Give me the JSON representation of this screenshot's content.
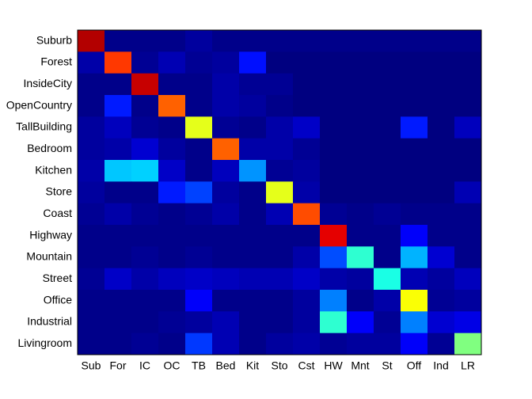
{
  "chart_data": {
    "type": "heatmap",
    "colormap": "jet",
    "clim": [
      0,
      1
    ],
    "categories": [
      "Sub",
      "For",
      "IC",
      "OC",
      "TB",
      "Bed",
      "Kit",
      "Sto",
      "Cst",
      "HW",
      "Mnt",
      "St",
      "Off",
      "Ind",
      "LR"
    ],
    "rows": [
      "Suburb",
      "Forest",
      "InsideCity",
      "OpenCountry",
      "TallBuilding",
      "Bedroom",
      "Kitchen",
      "Store",
      "Coast",
      "Highway",
      "Mountain",
      "Street",
      "Office",
      "Industrial",
      "Livingroom"
    ],
    "values": [
      [
        0.95,
        0.01,
        0.01,
        0.01,
        0.03,
        0.01,
        0.01,
        0.01,
        0.01,
        0.01,
        0.01,
        0.01,
        0.01,
        0.01,
        0.01
      ],
      [
        0.04,
        0.82,
        0.02,
        0.05,
        0.02,
        0.03,
        0.14,
        0,
        0,
        0,
        0,
        0,
        0,
        0,
        0
      ],
      [
        0.01,
        0.01,
        0.93,
        0.01,
        0.01,
        0.04,
        0.02,
        0.02,
        0,
        0,
        0,
        0,
        0,
        0,
        0
      ],
      [
        0.01,
        0.15,
        0.01,
        0.78,
        0.01,
        0.04,
        0.03,
        0.01,
        0,
        0,
        0,
        0,
        0,
        0,
        0
      ],
      [
        0.03,
        0.06,
        0.02,
        0.01,
        0.6,
        0.02,
        0.01,
        0.04,
        0.07,
        0,
        0,
        0,
        0.15,
        0,
        0.06
      ],
      [
        0.03,
        0.04,
        0.08,
        0.03,
        0.01,
        0.78,
        0.04,
        0.04,
        0.02,
        0,
        0,
        0,
        0,
        0,
        0
      ],
      [
        0.04,
        0.32,
        0.33,
        0.07,
        0.01,
        0.06,
        0.27,
        0.02,
        0.03,
        0,
        0,
        0,
        0,
        0,
        0
      ],
      [
        0.03,
        0.01,
        0.01,
        0.15,
        0.19,
        0.03,
        0.01,
        0.6,
        0.04,
        0,
        0,
        0,
        0,
        0,
        0.05
      ],
      [
        0.02,
        0.04,
        0.02,
        0.01,
        0.02,
        0.04,
        0.01,
        0.05,
        0.8,
        0.02,
        0.01,
        0.02,
        0.01,
        0.01,
        0.01
      ],
      [
        0.01,
        0.01,
        0.01,
        0.01,
        0.01,
        0.01,
        0.01,
        0.01,
        0.01,
        0.9,
        0.01,
        0.01,
        0.12,
        0.01,
        0.01
      ],
      [
        0.01,
        0.01,
        0.02,
        0.01,
        0.02,
        0.01,
        0.01,
        0.01,
        0.04,
        0.2,
        0.42,
        0.01,
        0.3,
        0.08,
        0.01
      ],
      [
        0.02,
        0.07,
        0.04,
        0.06,
        0.07,
        0.06,
        0.05,
        0.05,
        0.07,
        0.04,
        0.03,
        0.4,
        0.05,
        0.03,
        0.06
      ],
      [
        0.01,
        0.01,
        0.01,
        0.01,
        0.12,
        0.01,
        0.01,
        0.01,
        0.03,
        0.25,
        0.01,
        0.04,
        0.62,
        0.02,
        0.03
      ],
      [
        0.01,
        0.01,
        0.01,
        0.02,
        0.03,
        0.05,
        0.01,
        0.01,
        0.03,
        0.42,
        0.12,
        0.02,
        0.25,
        0.08,
        0.1
      ],
      [
        0.01,
        0.01,
        0.02,
        0.01,
        0.18,
        0.05,
        0.01,
        0.03,
        0.04,
        0.02,
        0.03,
        0.03,
        0.12,
        0.02,
        0.5
      ]
    ]
  }
}
